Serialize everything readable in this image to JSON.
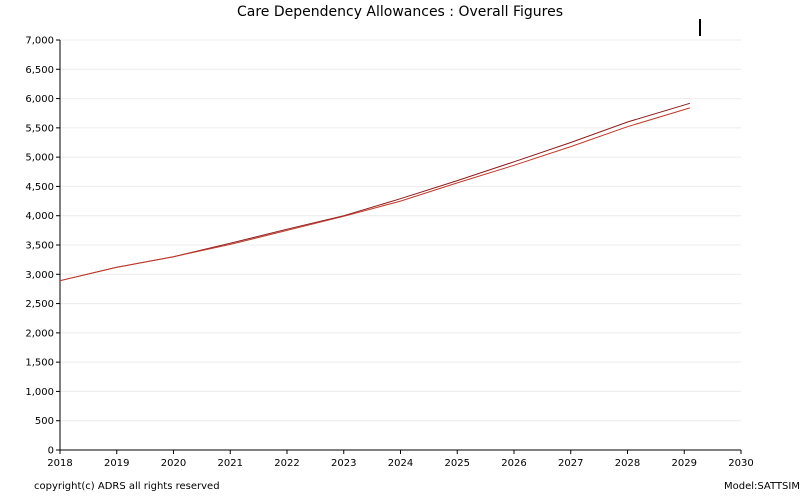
{
  "chart_data": {
    "type": "line",
    "title": "Care Dependency Allowances : Overall Figures",
    "xlabel": "",
    "ylabel": "",
    "xlim": [
      2018,
      2030
    ],
    "ylim": [
      0,
      7000
    ],
    "x_ticks": [
      "2018",
      "2019",
      "2020",
      "2021",
      "2022",
      "2023",
      "2024",
      "2025",
      "2026",
      "2027",
      "2028",
      "2029",
      "2030"
    ],
    "y_ticks": [
      "0",
      "500",
      "1,000",
      "1,500",
      "2,000",
      "2,500",
      "3,000",
      "3,500",
      "4,000",
      "4,500",
      "5,000",
      "5,500",
      "6,000",
      "6,500",
      "7,000"
    ],
    "grid": true,
    "series": [
      {
        "color": "#8b1a1a",
        "x": [
          2018.0,
          2019.0,
          2020.0,
          2021.0,
          2022.0,
          2023.0,
          2024.0,
          2025.0,
          2026.0,
          2027.0,
          2028.0,
          2029.1
        ],
        "values": [
          2890,
          3120,
          3300,
          3530,
          3770,
          4000,
          4290,
          4600,
          4920,
          5250,
          5600,
          5920
        ]
      },
      {
        "color": "#c0392b",
        "x": [
          2018.0,
          2019.0,
          2020.0,
          2021.0,
          2022.0,
          2023.0,
          2024.0,
          2025.0,
          2026.0,
          2027.0,
          2028.0,
          2029.1
        ],
        "values": [
          2890,
          3120,
          3300,
          3510,
          3750,
          3990,
          4250,
          4560,
          4860,
          5180,
          5520,
          5840
        ]
      }
    ]
  },
  "footer": {
    "copyright": "copyright(c) ADRS all rights reserved",
    "model": "Model:SATTSIM_"
  }
}
